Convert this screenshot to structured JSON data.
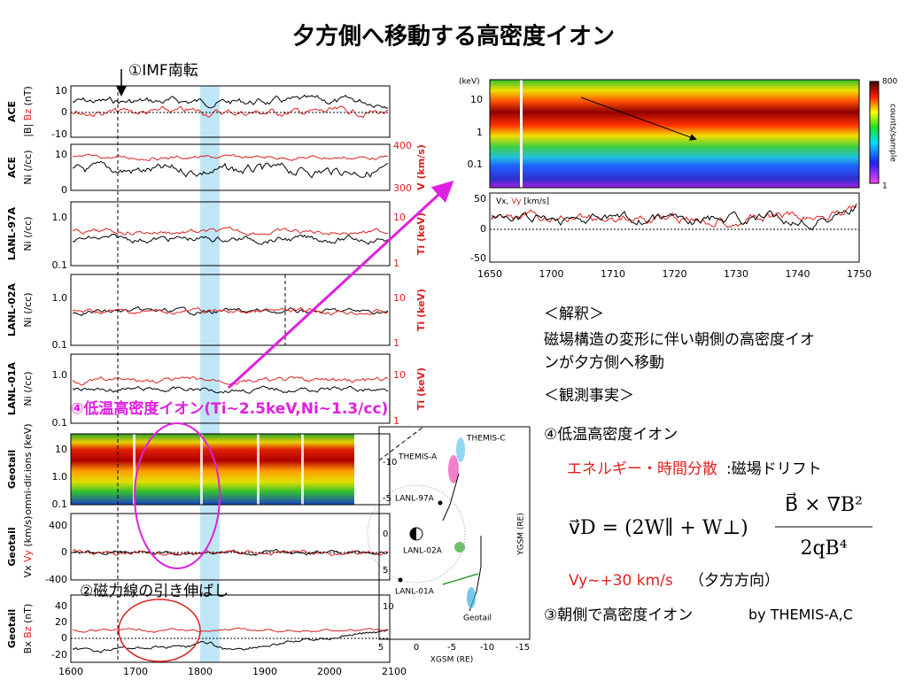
{
  "title": "夕方側へ移動する高密度イオン",
  "annotations": {
    "imf": "①IMF南転",
    "cold_ions": "④低温高密度イオン(Ti~2.5keV,Ni~1.3/cc)",
    "stretch": "②磁力線の引き伸ばし"
  },
  "left_panels": [
    {
      "instrument": "ACE",
      "ylabel": {
        "black": "|B|",
        "red": "Bz",
        "unit": "(nT)"
      },
      "yticks": [
        "10",
        "0",
        "-10"
      ]
    },
    {
      "instrument": "ACE",
      "ylabel": {
        "black": "Ni",
        "unit": "(/cc)"
      },
      "yticks": [
        "10",
        "0"
      ],
      "right_label": "V (km/s)",
      "right_ticks": [
        "400",
        "300"
      ]
    },
    {
      "instrument": "LANL-97A",
      "ylabel": {
        "black": "Ni",
        "unit": "(/cc)"
      },
      "yticks": [
        "1.0",
        "0.1"
      ],
      "right_label": "Ti (keV)",
      "right_ticks": [
        "10",
        "1"
      ]
    },
    {
      "instrument": "LANL-02A",
      "ylabel": {
        "black": "Ni",
        "unit": "(/cc)"
      },
      "yticks": [
        "1.0",
        "0.1"
      ],
      "right_label": "Ti (keV)",
      "right_ticks": [
        "10",
        "1"
      ]
    },
    {
      "instrument": "LANL-01A",
      "ylabel": {
        "black": "Ni",
        "unit": "(/cc)"
      },
      "yticks": [
        "1.0",
        "0.1"
      ],
      "right_label": "Ti (keV)",
      "right_ticks": [
        "10",
        "1"
      ]
    },
    {
      "instrument": "Geotail",
      "ylabel": {
        "black": "omni-dir.ions",
        "unit": "(keV)"
      },
      "yticks": [
        "10",
        "1.0",
        "0.1"
      ]
    },
    {
      "instrument": "Geotail",
      "ylabel": {
        "black": "Vx",
        "red": "Vy",
        "unit": "(km/s)"
      },
      "yticks": [
        "400",
        "0",
        "-400"
      ]
    },
    {
      "instrument": "Geotail",
      "ylabel": {
        "black": "Bx",
        "red": "Bz",
        "unit": "(nT)"
      },
      "yticks": [
        "40",
        "20",
        "0",
        "-20"
      ]
    }
  ],
  "left_xticks": [
    "1600",
    "1700",
    "1800",
    "1900",
    "2000",
    "2100"
  ],
  "spectrogram": {
    "unit": "(keV)",
    "yticks": [
      "10",
      "1",
      "0.1"
    ],
    "colorbar_max": "800",
    "colorbar_min": "1",
    "colorbar_label": "counts/sample"
  },
  "velocity_panel": {
    "label_black": "Vx,",
    "label_red": "Vy",
    "label_unit": "[km/s]",
    "yticks": [
      "50",
      "0",
      "-50"
    ],
    "xticks": [
      "1650",
      "1700",
      "1710",
      "1720",
      "1730",
      "1740",
      "1750"
    ]
  },
  "orbit": {
    "labels": [
      "THEMIS-C",
      "THEMIS-A",
      "LANL-97A",
      "LANL-02A",
      "LANL-01A",
      "Geotail"
    ],
    "yticks": [
      "-10",
      "-5",
      "0",
      "5",
      "10"
    ],
    "xticks": [
      "5",
      "0",
      "-5",
      "-10",
      "-15"
    ],
    "ylabel": "YGSM (RE)",
    "xlabel": "XGSM (RE)"
  },
  "text": {
    "interpretation_head": "＜解釈＞",
    "interpretation": [
      "磁場構造の変形に伴い朝側の高密度イオ",
      "ンが夕方側へ移動"
    ],
    "facts_head": "＜観測事実＞",
    "fact4": "④低温高密度イオン",
    "dispersion": "エネルギー・時間分散",
    "drift": ":磁場ドリフト",
    "formula_lhs": "v⃗D = (2W∥ + W⊥)",
    "formula_num": "B⃗ × ∇B²",
    "formula_den": "2qB⁴",
    "vy": "Vy~+30 km/s",
    "vy_dir": "（夕方方向）",
    "fact3": "③朝側で高密度イオン",
    "fact3_by": "by THEMIS-A,C"
  }
}
